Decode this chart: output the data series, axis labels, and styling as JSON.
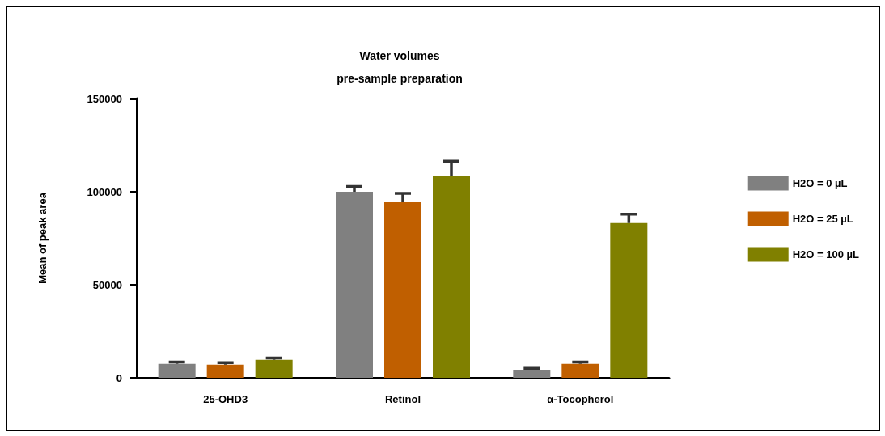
{
  "chart_data": {
    "type": "bar",
    "title": "Water volumes",
    "subtitle": "pre-sample preparation",
    "ylabel": "Mean of peak area",
    "categories": [
      "25-OHD3",
      "Retinol",
      "α-Tocopherol"
    ],
    "series": [
      {
        "name": "H2O = 0 µL",
        "color": "#808080",
        "values": [
          7500,
          100000,
          4100
        ],
        "errors": [
          [
            7500,
            8500
          ],
          [
            100000,
            102800
          ],
          [
            4100,
            5100
          ]
        ]
      },
      {
        "name": "H2O = 25 µL",
        "color": "#c05f00",
        "values": [
          7100,
          94400,
          7500
        ],
        "errors": [
          [
            7100,
            8100
          ],
          [
            94400,
            99100
          ],
          [
            7500,
            8500
          ]
        ]
      },
      {
        "name": "H2O = 100 µL",
        "color": "#808000",
        "values": [
          9700,
          108400,
          83200
        ],
        "errors": [
          [
            9700,
            10700
          ],
          [
            108400,
            116400
          ],
          [
            83200,
            87900
          ]
        ]
      }
    ],
    "ylim": [
      0,
      150000
    ],
    "yticks": [
      0,
      {
        "value": 50000,
        "label": "50000"
      },
      {
        "value": 100000,
        "label": "100000"
      },
      {
        "value": 150000,
        "label": "150000"
      }
    ],
    "grid": false,
    "legend": "right"
  }
}
